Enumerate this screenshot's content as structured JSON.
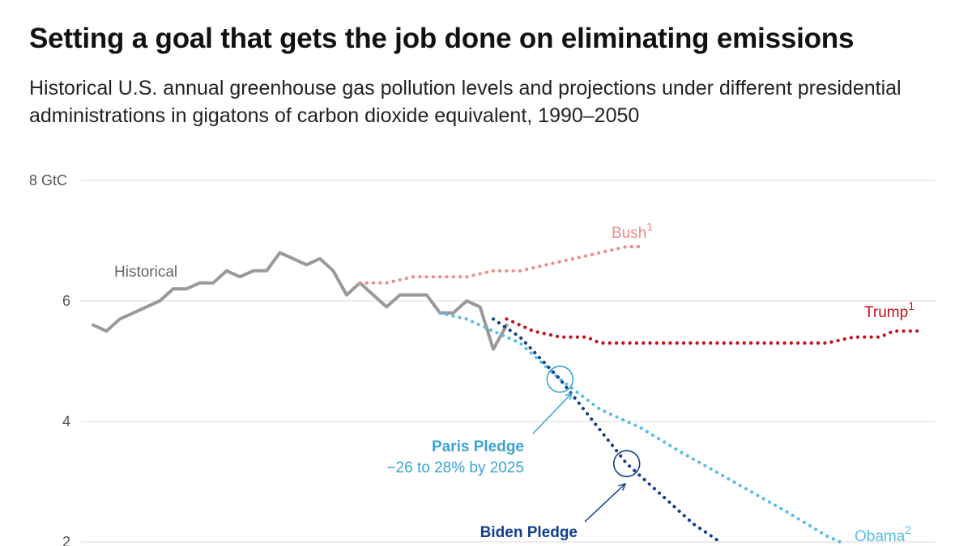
{
  "title": "Setting a goal that gets the job done on eliminating emissions",
  "subtitle": "Historical U.S. annual greenhouse gas pollution levels and projections under different presidential administrations in gigatons of carbon dioxide equivalent, 1990–2050",
  "chart_data": {
    "type": "line",
    "title": "Setting a goal that gets the job done on eliminating emissions",
    "subtitle": "Historical U.S. annual greenhouse gas pollution levels and projections under different presidential administrations in gigatons of carbon dioxide equivalent, 1990–2050",
    "ylim": [
      2,
      8
    ],
    "y_ticks": [
      {
        "value": 8,
        "label": "8 GtC"
      },
      {
        "value": 6,
        "label": "6"
      },
      {
        "value": 4,
        "label": "4"
      },
      {
        "value": 2,
        "label": "2"
      }
    ],
    "grid": true,
    "series": [
      {
        "name": "Historical",
        "style": "solid",
        "color": "#999999",
        "points": [
          [
            1990,
            5.6
          ],
          [
            1991,
            5.5
          ],
          [
            1992,
            5.7
          ],
          [
            1993,
            5.8
          ],
          [
            1994,
            5.9
          ],
          [
            1995,
            6.0
          ],
          [
            1996,
            6.2
          ],
          [
            1997,
            6.2
          ],
          [
            1998,
            6.3
          ],
          [
            1999,
            6.3
          ],
          [
            2000,
            6.5
          ],
          [
            2001,
            6.4
          ],
          [
            2002,
            6.5
          ],
          [
            2003,
            6.5
          ],
          [
            2004,
            6.8
          ],
          [
            2005,
            6.7
          ],
          [
            2006,
            6.6
          ],
          [
            2007,
            6.7
          ],
          [
            2008,
            6.5
          ],
          [
            2009,
            6.1
          ],
          [
            2010,
            6.3
          ],
          [
            2011,
            6.1
          ],
          [
            2012,
            5.9
          ],
          [
            2013,
            6.1
          ],
          [
            2014,
            6.1
          ],
          [
            2015,
            6.1
          ],
          [
            2016,
            5.8
          ],
          [
            2017,
            5.8
          ],
          [
            2018,
            6.0
          ],
          [
            2019,
            5.9
          ],
          [
            2020,
            5.2
          ],
          [
            2021,
            5.6
          ]
        ]
      },
      {
        "name": "Bush",
        "sup": "1",
        "style": "dotted",
        "color": "#f08a8a",
        "points": [
          [
            2010,
            6.3
          ],
          [
            2012,
            6.3
          ],
          [
            2014,
            6.4
          ],
          [
            2016,
            6.4
          ],
          [
            2018,
            6.4
          ],
          [
            2020,
            6.5
          ],
          [
            2022,
            6.5
          ],
          [
            2024,
            6.6
          ],
          [
            2026,
            6.7
          ],
          [
            2028,
            6.8
          ],
          [
            2030,
            6.9
          ],
          [
            2031,
            6.9
          ]
        ]
      },
      {
        "name": "Trump",
        "sup": "1",
        "style": "dotted",
        "color": "#c0101a",
        "points": [
          [
            2021,
            5.7
          ],
          [
            2023,
            5.5
          ],
          [
            2025,
            5.4
          ],
          [
            2027,
            5.4
          ],
          [
            2028,
            5.3
          ],
          [
            2030,
            5.3
          ],
          [
            2035,
            5.3
          ],
          [
            2040,
            5.3
          ],
          [
            2045,
            5.3
          ],
          [
            2047,
            5.4
          ],
          [
            2049,
            5.4
          ],
          [
            2050,
            5.5
          ],
          [
            2052,
            5.5
          ]
        ]
      },
      {
        "name": "Obama",
        "sup": "2",
        "style": "dotted",
        "color": "#5bbde6",
        "points": [
          [
            2016,
            5.8
          ],
          [
            2018,
            5.7
          ],
          [
            2020,
            5.5
          ],
          [
            2022,
            5.3
          ],
          [
            2025,
            4.7
          ],
          [
            2028,
            4.2
          ],
          [
            2031,
            3.9
          ],
          [
            2034,
            3.5
          ],
          [
            2038,
            3.0
          ],
          [
            2042,
            2.5
          ],
          [
            2045,
            2.1
          ],
          [
            2046,
            2.0
          ]
        ]
      },
      {
        "name": "Biden Pledge",
        "style": "dotted",
        "color": "#123f8c",
        "points": [
          [
            2020,
            5.7
          ],
          [
            2022,
            5.4
          ],
          [
            2025,
            4.7
          ],
          [
            2030,
            3.3
          ],
          [
            2033,
            2.7
          ],
          [
            2035,
            2.3
          ],
          [
            2037,
            2.0
          ]
        ]
      }
    ],
    "annotations": [
      {
        "title": "Paris Pledge",
        "text": "−26 to 28% by 2025",
        "target": [
          2025,
          4.7
        ],
        "color": "#3aa3d3"
      },
      {
        "title": "Biden Pledge",
        "text": "",
        "target": [
          2030,
          3.3
        ],
        "color": "#123f8c"
      }
    ]
  }
}
